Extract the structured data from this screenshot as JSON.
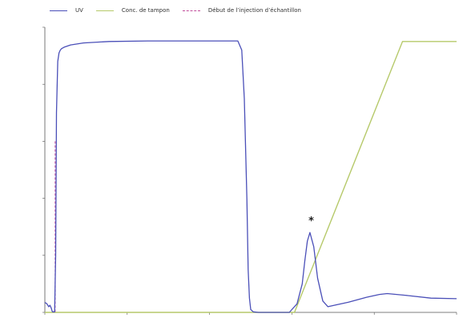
{
  "legend": {
    "uv": "UV",
    "buffer": "Conc. de tampon",
    "injection": "Début de l’injection d’échantillon"
  },
  "colors": {
    "uv": "#4a4fb8",
    "buffer": "#b6c96a",
    "injection": "#c04a9a",
    "axis": "#555555"
  },
  "chart_data": {
    "type": "line",
    "title": "",
    "xlabel": "",
    "ylabel": "",
    "xlim": [
      0,
      16
    ],
    "ylim": [
      0,
      100
    ],
    "series": [
      {
        "name": "UV",
        "x": [
          0,
          0.08,
          0.15,
          0.2,
          0.25,
          0.28,
          0.3,
          0.38,
          0.42,
          0.45,
          0.5,
          0.55,
          0.6,
          0.65,
          0.75,
          1.0,
          1.5,
          2.5,
          4,
          6,
          7.5,
          7.65,
          7.75,
          7.85,
          7.9,
          7.95,
          8.0,
          8.1,
          8.3,
          8.6,
          9.0,
          9.5,
          9.8,
          10.0,
          10.1,
          10.2,
          10.3,
          10.45,
          10.6,
          10.8,
          11.0,
          11.3,
          11.8,
          12.5,
          13.0,
          13.3,
          14.0,
          15.0,
          16.0
        ],
        "y": [
          3.5,
          3.0,
          2.0,
          2.5,
          1.5,
          0.5,
          0.2,
          0.2,
          20,
          70,
          88,
          91,
          92,
          92.5,
          93,
          93.8,
          94.5,
          95,
          95.2,
          95.2,
          95.2,
          92,
          75,
          40,
          15,
          5,
          1,
          0.2,
          0,
          0,
          0,
          0,
          3,
          10,
          18,
          25,
          28,
          23,
          12,
          4,
          2,
          2.6,
          3.6,
          5.3,
          6.3,
          6.6,
          6.0,
          5.0,
          4.8
        ]
      },
      {
        "name": "Conc. de tampon",
        "x": [
          0,
          8.0,
          9.7,
          13.9,
          16.0
        ],
        "y": [
          0,
          0,
          0,
          95,
          95
        ]
      }
    ],
    "injection_x": 0.4,
    "marker": {
      "x": 10.35,
      "y": 32,
      "symbol": "*"
    },
    "yticks": [
      0,
      20,
      40,
      60,
      80,
      100
    ],
    "xticks": [
      0,
      3.2,
      6.4,
      9.6,
      12.8,
      16
    ]
  }
}
